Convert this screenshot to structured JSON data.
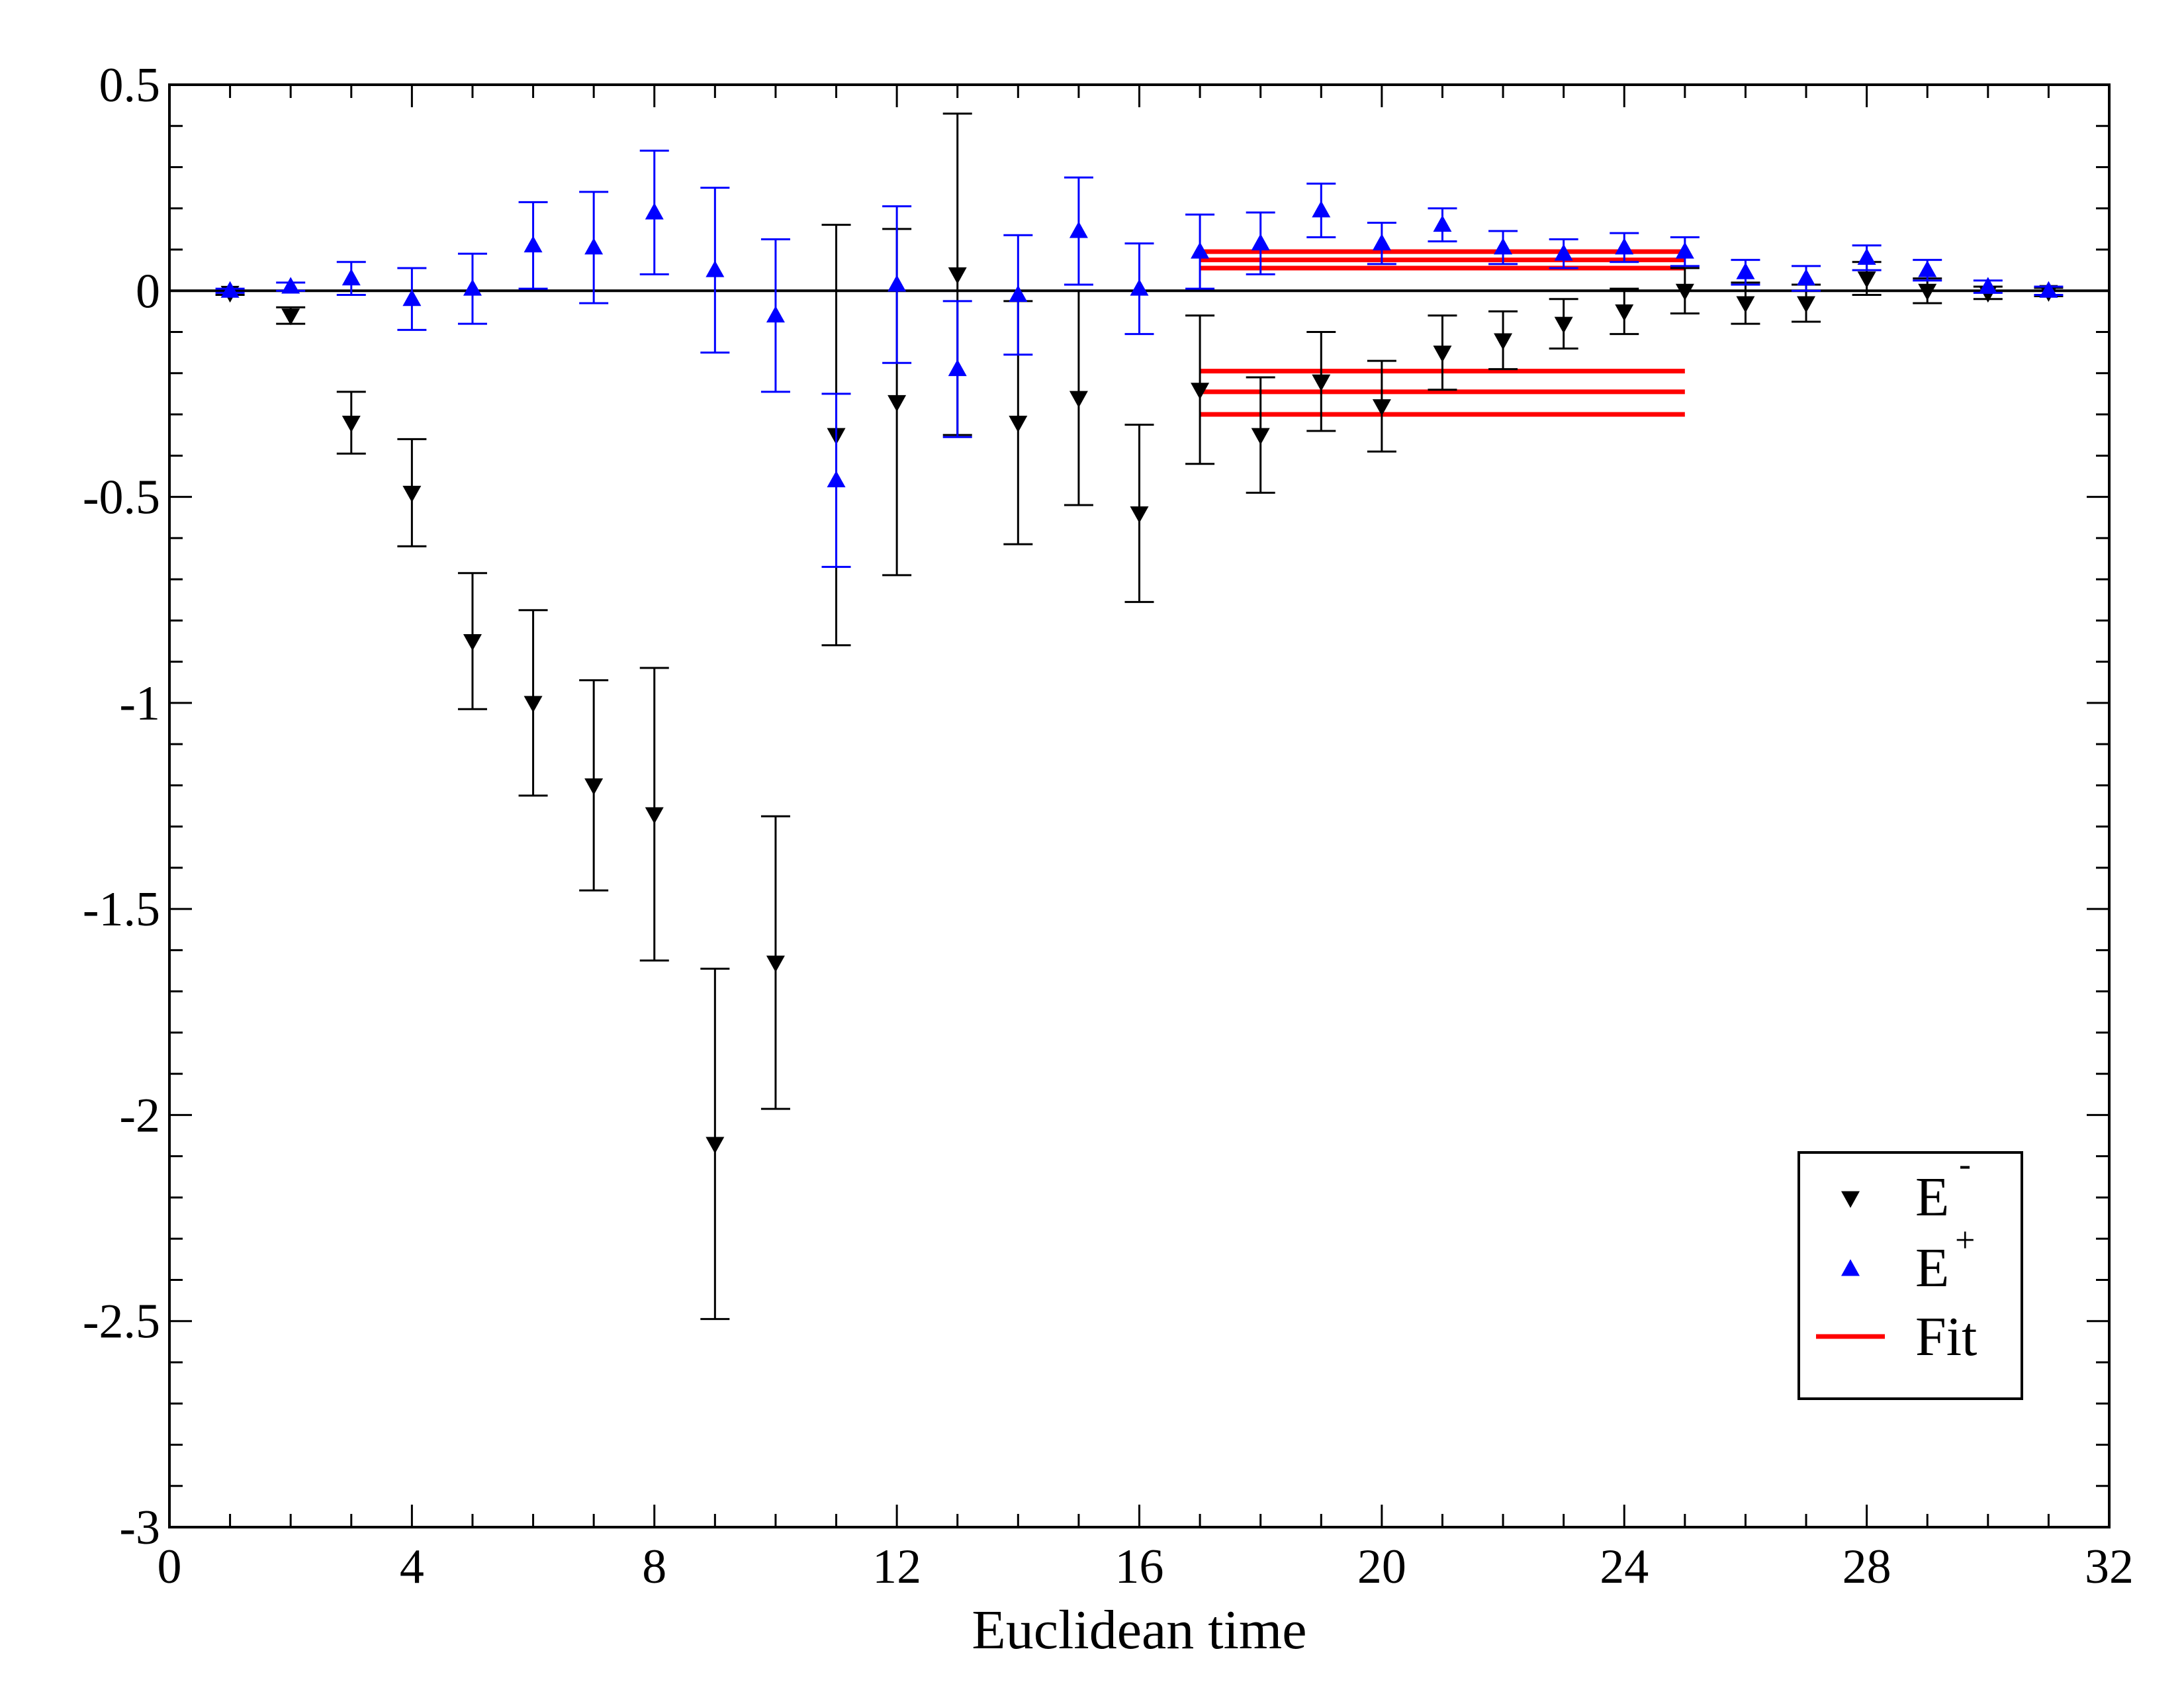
{
  "chart_data": {
    "type": "scatter",
    "title": "",
    "xlabel": "Euclidean time",
    "ylabel": "",
    "xlim": [
      0,
      32
    ],
    "ylim": [
      -3,
      0.5
    ],
    "x_ticks": [
      0,
      4,
      8,
      12,
      16,
      20,
      24,
      28,
      32
    ],
    "x_tick_labels": [
      "0",
      "4",
      "8",
      "12",
      "16",
      "20",
      "24",
      "28",
      "32"
    ],
    "y_ticks": [
      0.5,
      0,
      -0.5,
      -1,
      -1.5,
      -2,
      -2.5,
      -3
    ],
    "y_tick_labels": [
      "0.5",
      "0",
      "-0.5",
      "-1",
      "-1.5",
      "-2",
      "-2.5",
      "-3"
    ],
    "zero_line": 0,
    "legend": {
      "position": "bottom-right",
      "entries": [
        {
          "series": "E-",
          "base": "E",
          "sup": "-"
        },
        {
          "series": "E+",
          "base": "E",
          "sup": "+"
        },
        {
          "series": "Fit",
          "base": "Fit",
          "sup": ""
        }
      ]
    },
    "series": [
      {
        "name": "E-",
        "marker": "triangle-down",
        "color": "#000000",
        "x": [
          1,
          2,
          3,
          4,
          5,
          6,
          7,
          8,
          9,
          10,
          11,
          12,
          13,
          14,
          15,
          16,
          17,
          18,
          19,
          20,
          21,
          22,
          23,
          24,
          25,
          26,
          27,
          28,
          29,
          30,
          31
        ],
        "y": [
          -0.005,
          -0.06,
          -0.32,
          -0.49,
          -0.85,
          -1.0,
          -1.2,
          -1.27,
          -2.07,
          -1.63,
          -0.35,
          -0.27,
          0.04,
          -0.32,
          -0.26,
          -0.54,
          -0.24,
          -0.35,
          -0.22,
          -0.28,
          -0.15,
          -0.12,
          -0.08,
          -0.05,
          0.0,
          -0.03,
          -0.03,
          0.03,
          0.0,
          -0.005,
          -0.003
        ],
        "err": [
          0.005,
          0.02,
          0.075,
          0.13,
          0.165,
          0.225,
          0.255,
          0.355,
          0.425,
          0.355,
          0.51,
          0.42,
          0.39,
          0.295,
          0.26,
          0.215,
          0.18,
          0.14,
          0.12,
          0.11,
          0.09,
          0.07,
          0.06,
          0.055,
          0.055,
          0.05,
          0.045,
          0.04,
          0.03,
          0.015,
          0.01
        ]
      },
      {
        "name": "E+",
        "marker": "triangle-up",
        "color": "#0000ff",
        "x": [
          1,
          2,
          3,
          4,
          5,
          6,
          7,
          8,
          9,
          10,
          11,
          12,
          13,
          14,
          15,
          16,
          17,
          18,
          19,
          20,
          21,
          22,
          23,
          24,
          25,
          26,
          27,
          28,
          29,
          30,
          31
        ],
        "y": [
          0.0,
          0.01,
          0.03,
          -0.02,
          0.005,
          0.11,
          0.105,
          0.19,
          0.05,
          -0.06,
          -0.46,
          0.015,
          -0.19,
          -0.01,
          0.145,
          0.005,
          0.095,
          0.115,
          0.195,
          0.115,
          0.16,
          0.105,
          0.09,
          0.105,
          0.095,
          0.045,
          0.03,
          0.08,
          0.05,
          0.01,
          0.0
        ],
        "err": [
          0.005,
          0.01,
          0.04,
          0.075,
          0.085,
          0.105,
          0.135,
          0.15,
          0.2,
          0.185,
          0.21,
          0.19,
          0.165,
          0.145,
          0.13,
          0.11,
          0.09,
          0.075,
          0.065,
          0.05,
          0.04,
          0.04,
          0.035,
          0.035,
          0.035,
          0.03,
          0.03,
          0.03,
          0.025,
          0.015,
          0.01
        ]
      }
    ],
    "fits": [
      {
        "name": "Fit",
        "color": "#ff0000",
        "x_range": [
          17,
          25
        ],
        "values": [
          0.095,
          0.075,
          0.055
        ]
      },
      {
        "name": "Fit",
        "color": "#ff0000",
        "x_range": [
          17,
          25
        ],
        "values": [
          -0.195,
          -0.245,
          -0.3
        ]
      }
    ]
  }
}
